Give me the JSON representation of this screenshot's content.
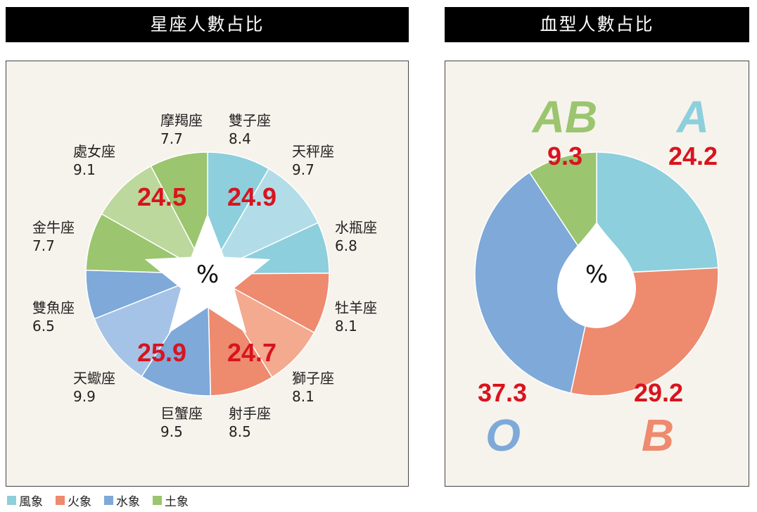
{
  "headers": {
    "left": "星座人數占比",
    "right": "血型人數占比"
  },
  "colors": {
    "air_dark": "#8dcfdc",
    "air_light": "#b2dde8",
    "fire_dark": "#ee8a6e",
    "fire_light": "#f3aa8f",
    "water_dark": "#7ea9d9",
    "water_light": "#a5c3e6",
    "earth_dark": "#9bc56f",
    "earth_light": "#bcd89c",
    "value_red": "#d8141e",
    "panel_bg": "#f6f3ec"
  },
  "chart_data": [
    {
      "type": "pie",
      "title": "星座人數占比",
      "center_label": "%",
      "slices": [
        {
          "name": "雙子座",
          "value": 8.4,
          "element": "風象"
        },
        {
          "name": "天秤座",
          "value": 9.7,
          "element": "風象"
        },
        {
          "name": "水瓶座",
          "value": 6.8,
          "element": "風象"
        },
        {
          "name": "牡羊座",
          "value": 8.1,
          "element": "火象"
        },
        {
          "name": "獅子座",
          "value": 8.1,
          "element": "火象"
        },
        {
          "name": "射手座",
          "value": 8.5,
          "element": "火象"
        },
        {
          "name": "巨蟹座",
          "value": 9.5,
          "element": "水象"
        },
        {
          "name": "天蠍座",
          "value": 9.9,
          "element": "水象"
        },
        {
          "name": "雙魚座",
          "value": 6.5,
          "element": "水象"
        },
        {
          "name": "金牛座",
          "value": 7.7,
          "element": "土象"
        },
        {
          "name": "處女座",
          "value": 9.1,
          "element": "土象"
        },
        {
          "name": "摩羯座",
          "value": 7.7,
          "element": "土象"
        }
      ],
      "group_totals": [
        {
          "element": "風象",
          "value": "24.9"
        },
        {
          "element": "火象",
          "value": "24.7"
        },
        {
          "element": "水象",
          "value": "25.9"
        },
        {
          "element": "土象",
          "value": "24.5"
        }
      ]
    },
    {
      "type": "pie",
      "title": "血型人數占比",
      "center_label": "%",
      "slices": [
        {
          "name": "A",
          "value": 24.2,
          "label": "24.2"
        },
        {
          "name": "B",
          "value": 29.2,
          "label": "29.2"
        },
        {
          "name": "O",
          "value": 37.3,
          "label": "37.3"
        },
        {
          "name": "AB",
          "value": 9.3,
          "label": "9.3"
        }
      ]
    }
  ],
  "legend": [
    {
      "label": "風象",
      "color": "#8dcfdc"
    },
    {
      "label": "火象",
      "color": "#ee8a6e"
    },
    {
      "label": "水象",
      "color": "#7ea9d9"
    },
    {
      "label": "土象",
      "color": "#9bc56f"
    }
  ]
}
